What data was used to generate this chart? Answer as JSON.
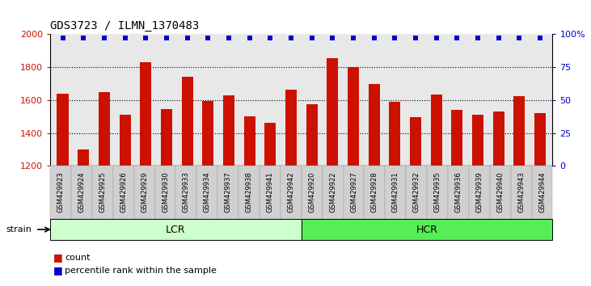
{
  "title": "GDS3723 / ILMN_1370483",
  "categories": [
    "GSM429923",
    "GSM429924",
    "GSM429925",
    "GSM429926",
    "GSM429929",
    "GSM429930",
    "GSM429933",
    "GSM429934",
    "GSM429937",
    "GSM429938",
    "GSM429941",
    "GSM429942",
    "GSM429920",
    "GSM429922",
    "GSM429927",
    "GSM429928",
    "GSM429931",
    "GSM429932",
    "GSM429935",
    "GSM429936",
    "GSM429939",
    "GSM429940",
    "GSM429943",
    "GSM429944"
  ],
  "values": [
    1640,
    1300,
    1650,
    1510,
    1830,
    1545,
    1740,
    1595,
    1630,
    1500,
    1460,
    1665,
    1575,
    1855,
    1800,
    1700,
    1590,
    1495,
    1635,
    1540,
    1510,
    1530,
    1625,
    1520
  ],
  "bar_color": "#cc1100",
  "dot_color": "#0000cc",
  "ylim": [
    1200,
    2000
  ],
  "yticks": [
    1200,
    1400,
    1600,
    1800,
    2000
  ],
  "right_yticks": [
    0,
    25,
    50,
    75,
    100
  ],
  "right_ytick_labels": [
    "0",
    "25",
    "50",
    "75",
    "100%"
  ],
  "right_ylim": [
    0,
    100
  ],
  "grid_color": "#000000",
  "lcr_count": 12,
  "hcr_count": 12,
  "lcr_label": "LCR",
  "hcr_label": "HCR",
  "strain_label": "strain",
  "legend_count_label": "count",
  "legend_percentile_label": "percentile rank within the sample",
  "plot_bg_color": "#e8e8e8",
  "tick_bg_color": "#d0d0d0",
  "lcr_color": "#ccffcc",
  "hcr_color": "#55ee55",
  "left_tick_color": "#cc1100",
  "right_tick_color": "#0000cc",
  "percentile_dot_pct": 97,
  "dot_marker": "s",
  "dot_size": 4,
  "baseline": 1200
}
